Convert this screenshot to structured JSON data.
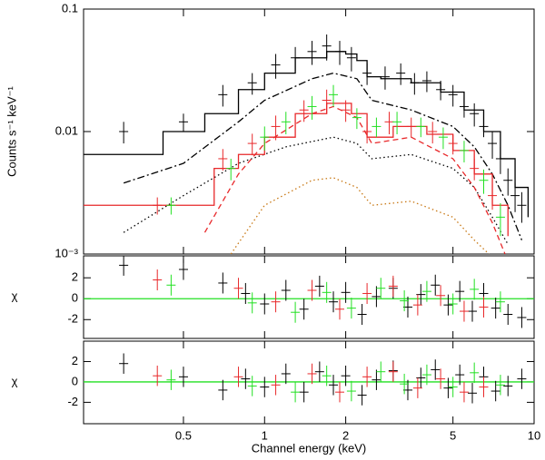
{
  "chart_data": [
    {
      "type": "scatter",
      "y_label": "Counts s⁻¹ keV⁻¹",
      "xscale": "log",
      "yscale": "log",
      "xlim": [
        0.213,
        10
      ],
      "xticks": [
        0.5,
        1,
        2,
        5,
        10
      ],
      "ylim": [
        0.001,
        0.1
      ],
      "yticks": [
        {
          "value": 0.001,
          "label": "10⁻³"
        },
        0.01,
        0.1
      ],
      "series": [
        {
          "color": "#000000",
          "style": "step",
          "x": [
            0.213,
            0.3,
            0.42,
            0.6,
            0.8,
            1.0,
            1.3,
            1.7,
            2.0,
            2.2,
            2.4,
            2.7,
            3.5,
            4.5,
            5.5,
            6.5,
            7.5,
            8.5,
            9.5
          ],
          "values": [
            0.0065,
            0.0065,
            0.01,
            0.014,
            0.022,
            0.03,
            0.04,
            0.045,
            0.043,
            0.038,
            0.028,
            0.027,
            0.025,
            0.021,
            0.015,
            0.01,
            0.006,
            0.0035,
            0.002
          ]
        },
        {
          "color": "#000000",
          "style": "dashdot",
          "x": [
            0.3,
            0.5,
            0.8,
            1.0,
            1.5,
            1.8,
            2.2,
            2.5,
            3.5,
            5,
            6,
            7,
            8,
            9
          ],
          "values": [
            0.0038,
            0.0055,
            0.012,
            0.018,
            0.027,
            0.03,
            0.027,
            0.018,
            0.015,
            0.011,
            0.0075,
            0.0045,
            0.0025,
            0.0013
          ]
        },
        {
          "color": "#000000",
          "style": "dotted",
          "x": [
            0.3,
            0.5,
            0.8,
            1.2,
            1.8,
            2.2,
            2.5,
            3.5,
            5,
            6,
            7,
            8
          ],
          "values": [
            0.0015,
            0.003,
            0.0055,
            0.0075,
            0.009,
            0.008,
            0.006,
            0.0065,
            0.005,
            0.0035,
            0.002,
            0.0012
          ]
        },
        {
          "color": "#e8282a",
          "style": "step",
          "x": [
            0.213,
            0.6,
            0.65,
            0.8,
            1.0,
            1.3,
            1.7,
            2.1,
            2.4,
            3,
            4,
            5,
            6,
            7,
            8
          ],
          "values": [
            0.0025,
            0.0025,
            0.005,
            0.0065,
            0.009,
            0.014,
            0.017,
            0.014,
            0.009,
            0.011,
            0.0095,
            0.007,
            0.0045,
            0.0025,
            0.0014
          ]
        },
        {
          "color": "#e8282a",
          "style": "dashed",
          "x": [
            0.6,
            0.8,
            1.0,
            1.5,
            1.8,
            2.2,
            2.5,
            3.5,
            5,
            6,
            7,
            7.8
          ],
          "values": [
            0.0015,
            0.0045,
            0.008,
            0.014,
            0.016,
            0.013,
            0.008,
            0.009,
            0.006,
            0.0035,
            0.0018,
            0.001
          ]
        },
        {
          "color": "#c87814",
          "style": "dotted",
          "x": [
            0.75,
            1.0,
            1.5,
            1.8,
            2.2,
            2.5,
            3.5,
            5,
            6,
            6.8
          ],
          "values": [
            0.001,
            0.0025,
            0.004,
            0.0042,
            0.0035,
            0.0025,
            0.0027,
            0.002,
            0.0013,
            0.001
          ]
        },
        {
          "color": "#000000",
          "style": "points",
          "x": [
            0.3,
            0.5,
            0.7,
            0.9,
            1.1,
            1.3,
            1.5,
            1.7,
            1.9,
            2.1,
            2.4,
            2.8,
            3.2,
            3.6,
            4.0,
            4.5,
            5,
            5.5,
            6,
            6.5,
            7,
            7.5,
            8,
            8.5,
            9
          ],
          "values": [
            0.01,
            0.012,
            0.02,
            0.025,
            0.035,
            0.04,
            0.045,
            0.05,
            0.045,
            0.04,
            0.03,
            0.028,
            0.03,
            0.025,
            0.026,
            0.022,
            0.02,
            0.016,
            0.014,
            0.011,
            0.008,
            0.006,
            0.004,
            0.003,
            0.0025
          ],
          "errors": [
            0.002,
            0.002,
            0.004,
            0.005,
            0.008,
            0.009,
            0.01,
            0.012,
            0.01,
            0.009,
            0.006,
            0.006,
            0.006,
            0.005,
            0.005,
            0.004,
            0.004,
            0.003,
            0.003,
            0.002,
            0.002,
            0.0015,
            0.001,
            0.0008,
            0.0007
          ]
        },
        {
          "color": "#e8282a",
          "style": "points",
          "x": [
            0.4,
            0.7,
            0.9,
            1.1,
            1.4,
            1.7,
            2.0,
            2.4,
            2.9,
            3.5,
            4.2,
            5,
            6,
            7
          ],
          "values": [
            0.0025,
            0.006,
            0.008,
            0.011,
            0.015,
            0.018,
            0.015,
            0.01,
            0.012,
            0.011,
            0.01,
            0.008,
            0.005,
            0.003
          ],
          "errors": [
            0.0004,
            0.0012,
            0.0016,
            0.0025,
            0.003,
            0.004,
            0.003,
            0.002,
            0.0025,
            0.002,
            0.002,
            0.0015,
            0.001,
            0.0007
          ]
        },
        {
          "color": "#22e022",
          "style": "points",
          "x": [
            0.45,
            0.75,
            1.0,
            1.2,
            1.5,
            1.8,
            2.2,
            2.6,
            3.1,
            3.8,
            4.6,
            5.5,
            6.5,
            7.5
          ],
          "values": [
            0.0025,
            0.005,
            0.009,
            0.012,
            0.016,
            0.02,
            0.013,
            0.011,
            0.012,
            0.011,
            0.009,
            0.007,
            0.004,
            0.002
          ],
          "errors": [
            0.0004,
            0.001,
            0.002,
            0.0025,
            0.0035,
            0.004,
            0.0025,
            0.002,
            0.0025,
            0.002,
            0.0018,
            0.0014,
            0.0009,
            0.0006
          ]
        }
      ]
    },
    {
      "type": "scatter",
      "y_label": "χ",
      "xscale": "log",
      "xlim": [
        0.213,
        10
      ],
      "xticks": [
        0.5,
        1,
        2,
        5,
        10
      ],
      "ylim": [
        -3.8,
        4.1
      ],
      "yticks": [
        -2,
        0,
        2
      ],
      "series": [
        {
          "color": "#22e022",
          "style": "line",
          "x": [
            0.213,
            10
          ],
          "values": [
            0,
            0
          ]
        },
        {
          "color": "#000000",
          "style": "points",
          "x": [
            0.3,
            0.5,
            0.7,
            0.85,
            1.0,
            1.2,
            1.4,
            1.6,
            1.8,
            2.0,
            2.3,
            2.6,
            3.0,
            3.4,
            3.8,
            4.3,
            4.8,
            5.3,
            5.9,
            6.5,
            7.2,
            8.0,
            9.0
          ],
          "values": [
            3.2,
            2.8,
            1.5,
            0.5,
            -0.5,
            0.8,
            -1.0,
            1.2,
            -0.3,
            0.6,
            -1.5,
            0.2,
            1.0,
            -0.8,
            0.4,
            1.3,
            -0.6,
            0.7,
            -1.2,
            0.5,
            -0.9,
            -1.5,
            -1.8
          ],
          "errors": [
            1,
            1,
            1,
            1,
            1,
            1,
            1,
            1,
            1,
            1,
            1,
            1,
            1,
            1,
            1,
            1,
            1,
            1,
            1,
            1,
            1,
            1,
            1
          ]
        },
        {
          "color": "#e8282a",
          "style": "points",
          "x": [
            0.4,
            0.8,
            1.1,
            1.5,
            1.9,
            2.4,
            3.0,
            3.7,
            4.5,
            5.5,
            6.5
          ],
          "values": [
            1.8,
            1.0,
            -0.3,
            0.8,
            -1.0,
            0.5,
            1.2,
            -0.6,
            0.3,
            -1.2,
            -0.8
          ],
          "errors": [
            1,
            1,
            1,
            1,
            1,
            1,
            1,
            1,
            1,
            1,
            1
          ]
        },
        {
          "color": "#22e022",
          "style": "points",
          "x": [
            0.45,
            0.9,
            1.3,
            1.7,
            2.1,
            2.7,
            3.3,
            4.0,
            5.0,
            6.0,
            7.5
          ],
          "values": [
            1.3,
            -0.4,
            -1.3,
            0.6,
            -0.9,
            1.0,
            -0.2,
            0.7,
            -0.5,
            0.9,
            -0.3
          ],
          "errors": [
            1,
            1,
            1,
            1,
            1,
            1,
            1,
            1,
            1,
            1,
            1
          ]
        }
      ]
    },
    {
      "type": "scatter",
      "y_label": "χ",
      "x_label": "Channel energy (keV)",
      "xscale": "log",
      "xlim": [
        0.213,
        10
      ],
      "xticks": [
        0.5,
        1,
        2,
        5,
        10
      ],
      "ylim": [
        -4.1,
        4
      ],
      "yticks": [
        -2,
        0,
        2
      ],
      "series": [
        {
          "color": "#22e022",
          "style": "line",
          "x": [
            0.213,
            10
          ],
          "values": [
            0,
            0
          ]
        },
        {
          "color": "#000000",
          "style": "points",
          "x": [
            0.3,
            0.5,
            0.7,
            0.85,
            1.0,
            1.2,
            1.4,
            1.6,
            1.8,
            2.0,
            2.3,
            2.6,
            3.0,
            3.4,
            3.8,
            4.3,
            4.8,
            5.3,
            5.9,
            6.5,
            7.2,
            8.0,
            9.0
          ],
          "values": [
            1.8,
            0.5,
            -0.8,
            0.3,
            -0.5,
            0.8,
            -1.0,
            1.0,
            -0.3,
            0.6,
            -1.3,
            0.2,
            1.1,
            -0.8,
            0.4,
            1.2,
            -0.6,
            0.7,
            -1.1,
            0.5,
            -0.9,
            -0.4,
            0.3
          ],
          "errors": [
            1,
            1,
            1,
            1,
            1,
            1,
            1,
            1,
            1,
            1,
            1,
            1,
            1,
            1,
            1,
            1,
            1,
            1,
            1,
            1,
            1,
            1,
            1
          ]
        },
        {
          "color": "#e8282a",
          "style": "points",
          "x": [
            0.4,
            0.8,
            1.1,
            1.5,
            1.9,
            2.4,
            3.0,
            3.7,
            4.5,
            5.5,
            6.5
          ],
          "values": [
            0.6,
            0.5,
            -0.3,
            0.8,
            -1.0,
            0.5,
            1.0,
            -0.6,
            0.3,
            -1.0,
            -0.5
          ],
          "errors": [
            1,
            1,
            1,
            1,
            1,
            1,
            1,
            1,
            1,
            1,
            1
          ]
        },
        {
          "color": "#22e022",
          "style": "points",
          "x": [
            0.45,
            0.9,
            1.3,
            1.7,
            2.1,
            2.7,
            3.3,
            4.0,
            5.0,
            6.0,
            7.5
          ],
          "values": [
            0.2,
            -0.4,
            -1.0,
            0.6,
            -0.9,
            1.0,
            -0.2,
            0.7,
            -0.5,
            0.9,
            -0.3
          ],
          "errors": [
            1,
            1,
            1,
            1,
            1,
            1,
            1,
            1,
            1,
            1,
            1
          ]
        }
      ]
    }
  ]
}
